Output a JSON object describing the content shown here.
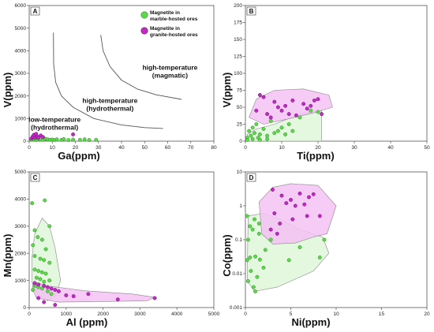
{
  "colors": {
    "green": "#5ed84a",
    "green_stroke": "#2f8a2a",
    "magenta": "#c22ac4",
    "magenta_stroke": "#6a0f6c",
    "green_field": "#dff7d9",
    "magenta_field": "#f4c2f5"
  },
  "chart_data": [
    {
      "id": "A",
      "type": "scatter",
      "panel_label": "A",
      "xlabel": "Ga(ppm)",
      "ylabel": "V(ppm)",
      "xlim": [
        0,
        80
      ],
      "ylim": [
        0,
        6000
      ],
      "xticks": [
        0,
        10,
        20,
        30,
        40,
        50,
        60,
        70,
        80
      ],
      "yticks": [
        0,
        1000,
        2000,
        3000,
        4000,
        5000,
        6000
      ],
      "legend": [
        "Magnetite in marble-hosted ores",
        "Magnetite in granite-hosted ores"
      ],
      "legend_lines": [
        [
          "Magnetite in",
          "marble-hosted ores"
        ],
        [
          "Magnetite in",
          "granite-hosted ores"
        ]
      ],
      "annotations": [
        {
          "lines": [
            "low-temperature",
            "(hydrothermal)"
          ],
          "x": 11,
          "y": 850
        },
        {
          "lines": [
            "high-temperature",
            "(hydrothermal)"
          ],
          "x": 35,
          "y": 1700
        },
        {
          "lines": [
            "high-temperature",
            "(magmatic)"
          ],
          "x": 61,
          "y": 3150
        }
      ],
      "boundaries": [
        [
          [
            10.5,
            4800
          ],
          [
            10.6,
            3400
          ],
          [
            11.5,
            2600
          ],
          [
            14,
            2000
          ],
          [
            19,
            1500
          ],
          [
            28,
            1000
          ],
          [
            40,
            720
          ],
          [
            50,
            600
          ],
          [
            58,
            560
          ]
        ],
        [
          [
            31,
            4700
          ],
          [
            32,
            4000
          ],
          [
            35,
            3300
          ],
          [
            40,
            2700
          ],
          [
            47,
            2300
          ],
          [
            55,
            2050
          ],
          [
            66,
            1850
          ]
        ]
      ],
      "series": [
        {
          "name": "Magnetite in marble-hosted ores",
          "color": "green",
          "points": [
            [
              1,
              60
            ],
            [
              2,
              80
            ],
            [
              3,
              50
            ],
            [
              4,
              90
            ],
            [
              5,
              70
            ],
            [
              6,
              60
            ],
            [
              7,
              100
            ],
            [
              8,
              80
            ],
            [
              9,
              60
            ],
            [
              10,
              70
            ],
            [
              11,
              50
            ],
            [
              12,
              80
            ],
            [
              14,
              60
            ],
            [
              15,
              90
            ],
            [
              17,
              50
            ],
            [
              19,
              70
            ],
            [
              22,
              60
            ],
            [
              24,
              80
            ],
            [
              26,
              50
            ],
            [
              29,
              60
            ]
          ]
        },
        {
          "name": "Magnetite in granite-hosted ores",
          "color": "magenta",
          "points": [
            [
              1,
              120
            ],
            [
              1.5,
              200
            ],
            [
              2,
              280
            ],
            [
              2.5,
              150
            ],
            [
              3,
              320
            ],
            [
              3.5,
              200
            ],
            [
              4,
              150
            ],
            [
              5,
              250
            ],
            [
              6,
              180
            ],
            [
              19,
              300
            ]
          ]
        }
      ]
    },
    {
      "id": "B",
      "type": "scatter",
      "panel_label": "B",
      "xlabel": "Ti(ppm)",
      "ylabel": "V(ppm)",
      "xlim": [
        0,
        50
      ],
      "ylim": [
        0,
        200
      ],
      "xticks": [
        0,
        10,
        20,
        30,
        40,
        50
      ],
      "yticks": [
        0,
        25,
        50,
        75,
        100,
        125,
        150,
        175,
        200
      ],
      "fields": [
        {
          "color": "green",
          "points": [
            [
              0.5,
              0
            ],
            [
              21,
              0
            ],
            [
              21,
              45
            ],
            [
              15,
              40
            ],
            [
              8,
              25
            ],
            [
              3,
              18
            ],
            [
              0.5,
              10
            ]
          ]
        },
        {
          "color": "magenta",
          "points": [
            [
              1,
              35
            ],
            [
              3,
              62
            ],
            [
              8,
              75
            ],
            [
              16,
              77
            ],
            [
              23,
              68
            ],
            [
              24,
              50
            ],
            [
              19,
              42
            ],
            [
              12,
              33
            ],
            [
              5,
              25
            ]
          ]
        }
      ],
      "series": [
        {
          "name": "Magnetite in marble-hosted ores",
          "color": "green",
          "points": [
            [
              0.5,
              5
            ],
            [
              1,
              15
            ],
            [
              1.5,
              8
            ],
            [
              2,
              20
            ],
            [
              2.5,
              12
            ],
            [
              3,
              25
            ],
            [
              3.5,
              5
            ],
            [
              4,
              10
            ],
            [
              5,
              18
            ],
            [
              6,
              8
            ],
            [
              7,
              30
            ],
            [
              8,
              12
            ],
            [
              9,
              15
            ],
            [
              10,
              20
            ],
            [
              11,
              10
            ],
            [
              12,
              25
            ],
            [
              13,
              15
            ],
            [
              15,
              35
            ],
            [
              18,
              45
            ],
            [
              20,
              43
            ],
            [
              0.5,
              2
            ],
            [
              2,
              3
            ],
            [
              4,
              2
            ],
            [
              6,
              3
            ]
          ]
        },
        {
          "name": "Magnetite in granite-hosted ores",
          "color": "magenta",
          "points": [
            [
              3,
              45
            ],
            [
              4,
              68
            ],
            [
              5,
              65
            ],
            [
              6,
              40
            ],
            [
              7,
              35
            ],
            [
              8,
              58
            ],
            [
              9,
              50
            ],
            [
              10,
              45
            ],
            [
              11,
              52
            ],
            [
              12,
              40
            ],
            [
              13,
              60
            ],
            [
              14,
              38
            ],
            [
              16,
              55
            ],
            [
              17,
              48
            ],
            [
              18,
              52
            ],
            [
              19,
              60
            ],
            [
              20,
              62
            ],
            [
              21,
              40
            ]
          ]
        }
      ]
    },
    {
      "id": "C",
      "type": "scatter",
      "panel_label": "C",
      "xlabel": "Al (ppm)",
      "ylabel": "Mn(ppm)",
      "xlim": [
        0,
        5000
      ],
      "ylim": [
        0,
        5000
      ],
      "xticks": [
        0,
        1000,
        2000,
        3000,
        4000,
        5000
      ],
      "yticks": [
        0,
        1000,
        2000,
        3000,
        4000,
        5000
      ],
      "fields": [
        {
          "color": "green",
          "points": [
            [
              350,
              3300
            ],
            [
              550,
              3000
            ],
            [
              700,
              2200
            ],
            [
              850,
              1000
            ],
            [
              700,
              400
            ],
            [
              500,
              250
            ],
            [
              250,
              450
            ],
            [
              80,
              900
            ],
            [
              70,
              1800
            ],
            [
              150,
              2700
            ]
          ]
        },
        {
          "color": "magenta",
          "points": [
            [
              120,
              950
            ],
            [
              500,
              800
            ],
            [
              1500,
              620
            ],
            [
              2800,
              500
            ],
            [
              3400,
              380
            ],
            [
              3200,
              250
            ],
            [
              2000,
              220
            ],
            [
              800,
              200
            ],
            [
              200,
              350
            ],
            [
              80,
              700
            ]
          ]
        }
      ],
      "series": [
        {
          "name": "Magnetite in marble-hosted ores",
          "color": "green",
          "points": [
            [
              80,
              3850
            ],
            [
              420,
              3950
            ],
            [
              550,
              3000
            ],
            [
              150,
              2850
            ],
            [
              230,
              2600
            ],
            [
              100,
              2300
            ],
            [
              350,
              2500
            ],
            [
              450,
              2150
            ],
            [
              150,
              1900
            ],
            [
              300,
              1800
            ],
            [
              400,
              1750
            ],
            [
              550,
              1650
            ],
            [
              150,
              1400
            ],
            [
              250,
              1350
            ],
            [
              350,
              1300
            ],
            [
              450,
              1250
            ],
            [
              200,
              1100
            ],
            [
              300,
              1050
            ],
            [
              400,
              950
            ],
            [
              550,
              1000
            ],
            [
              150,
              800
            ],
            [
              250,
              750
            ],
            [
              350,
              700
            ],
            [
              500,
              600
            ],
            [
              600,
              500
            ],
            [
              100,
              650
            ]
          ]
        },
        {
          "name": "Magnetite in granite-hosted ores",
          "color": "magenta",
          "points": [
            [
              150,
              900
            ],
            [
              250,
              850
            ],
            [
              400,
              800
            ],
            [
              500,
              750
            ],
            [
              600,
              700
            ],
            [
              700,
              650
            ],
            [
              800,
              600
            ],
            [
              1000,
              450
            ],
            [
              1200,
              420
            ],
            [
              1600,
              500
            ],
            [
              2400,
              300
            ],
            [
              3400,
              350
            ],
            [
              250,
              350
            ],
            [
              700,
              100
            ],
            [
              400,
              200
            ]
          ]
        }
      ]
    },
    {
      "id": "D",
      "type": "scatter",
      "panel_label": "D",
      "xlabel": "Ni(ppm)",
      "ylabel": "Co(ppm)",
      "xlim": [
        0,
        20
      ],
      "ylim": [
        0.001,
        10
      ],
      "yscale": "log",
      "xticks": [
        0,
        5,
        10,
        15,
        20
      ],
      "yticks": [
        0.001,
        0.01,
        0.1,
        1,
        10
      ],
      "ytick_labels": [
        "0.001",
        "0.01",
        "0.1",
        "1",
        "10"
      ],
      "fields": [
        {
          "color": "green",
          "points": [
            [
              0.3,
              0.5
            ],
            [
              2,
              0.6
            ],
            [
              4,
              0.38
            ],
            [
              6,
              0.2
            ],
            [
              8.5,
              0.12
            ],
            [
              9.2,
              0.04
            ],
            [
              7.5,
              0.012
            ],
            [
              5,
              0.006
            ],
            [
              3.5,
              0.004
            ],
            [
              1,
              0.003
            ],
            [
              0.2,
              0.006
            ]
          ]
        },
        {
          "color": "magenta",
          "points": [
            [
              1.5,
              1.3
            ],
            [
              3,
              3.5
            ],
            [
              5,
              4.5
            ],
            [
              8,
              4
            ],
            [
              10,
              1
            ],
            [
              9,
              0.15
            ],
            [
              7.5,
              0.12
            ],
            [
              5.5,
              0.08
            ],
            [
              3,
              0.075
            ],
            [
              1.8,
              0.15
            ]
          ]
        }
      ],
      "series": [
        {
          "name": "Magnetite in marble-hosted ores",
          "color": "green",
          "points": [
            [
              0.2,
              0.5
            ],
            [
              0.5,
              0.25
            ],
            [
              1,
              0.4
            ],
            [
              0.8,
              0.2
            ],
            [
              1.5,
              0.3
            ],
            [
              0.3,
              0.1
            ],
            [
              1.5,
              0.15
            ],
            [
              0.5,
              0.03
            ],
            [
              1.1,
              0.032
            ],
            [
              1.6,
              0.026
            ],
            [
              0.6,
              0.012
            ],
            [
              1.3,
              0.008
            ],
            [
              0.9,
              0.004
            ],
            [
              1.1,
              0.003
            ],
            [
              2,
              0.015
            ],
            [
              2.2,
              0.05
            ],
            [
              2.8,
              0.1
            ],
            [
              4.8,
              0.025
            ],
            [
              6,
              0.06
            ],
            [
              8.2,
              0.03
            ],
            [
              8.7,
              0.1
            ],
            [
              0.2,
              0.025
            ],
            [
              0.3,
              0.006
            ]
          ]
        },
        {
          "name": "Magnetite in granite-hosted ores",
          "color": "magenta",
          "points": [
            [
              3,
              3
            ],
            [
              4,
              2
            ],
            [
              5,
              1.5
            ],
            [
              6,
              2.3
            ],
            [
              7,
              1.8
            ],
            [
              7.5,
              2.2
            ],
            [
              4.5,
              1.2
            ],
            [
              5.5,
              1
            ],
            [
              6.5,
              1.1
            ],
            [
              3.2,
              0.6
            ],
            [
              5.2,
              0.4
            ],
            [
              6.8,
              0.5
            ],
            [
              8.2,
              0.5
            ],
            [
              3.5,
              0.15
            ],
            [
              2.8,
              0.2
            ],
            [
              3.8,
              0.3
            ]
          ]
        }
      ]
    }
  ]
}
